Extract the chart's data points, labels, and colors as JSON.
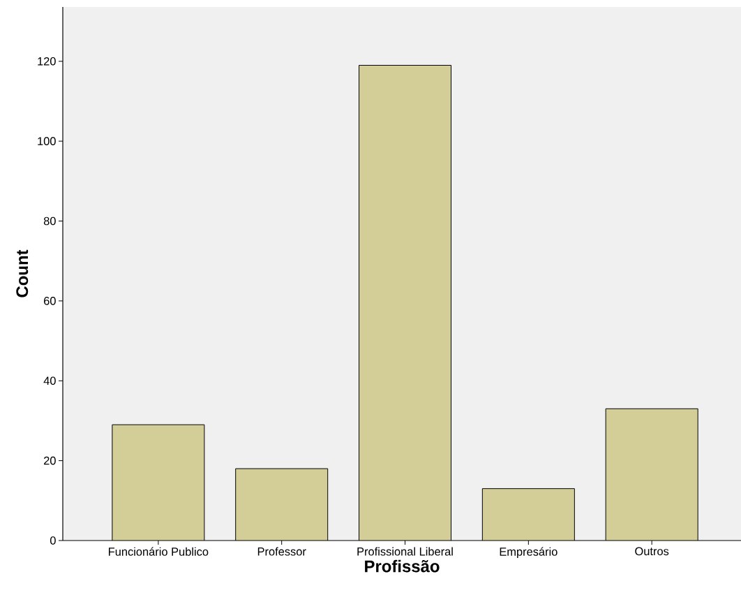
{
  "chart_data": {
    "type": "bar",
    "xlabel": "Profissão",
    "ylabel": "Count",
    "categories": [
      "Funcionário Publico",
      "Professor",
      "Profissional Liberal",
      "Empresário",
      "Outros"
    ],
    "values": [
      29,
      18,
      119,
      13,
      33
    ],
    "color": "#d3ce97",
    "ylim": [
      0,
      133.6
    ],
    "yticks": [
      0,
      20,
      40,
      60,
      80,
      100,
      120
    ]
  }
}
